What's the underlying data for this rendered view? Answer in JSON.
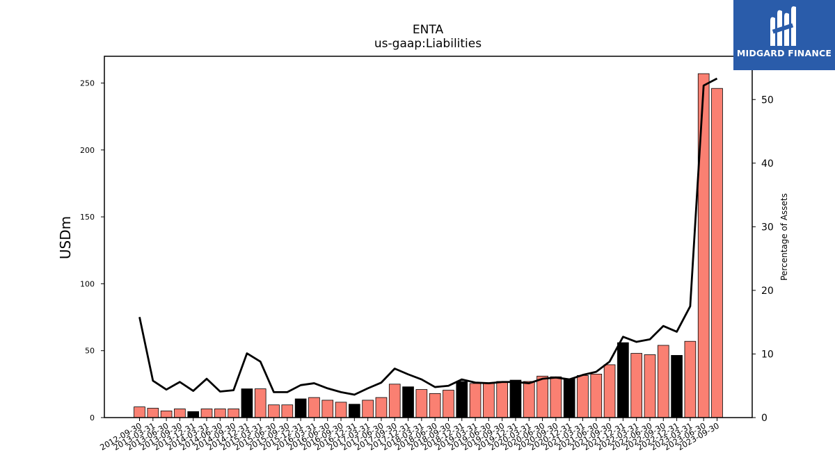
{
  "logo": {
    "text": "MIDGARD FINANCE"
  },
  "colors": {
    "bar_default": "#fa8072",
    "bar_highlight": "#000000",
    "line": "#000000",
    "logo_bg": "#2a5caa"
  },
  "chart_data": {
    "type": "bar",
    "title": "ENTA",
    "subtitle": "us-gaap:Liabilities",
    "ylabel": "USDm",
    "ylabel_right": "Percentage of Assets",
    "ylim": [
      0,
      270
    ],
    "ylim_right": [
      0,
      56.8
    ],
    "yticks": [
      0,
      50,
      100,
      150,
      200,
      250
    ],
    "yticks_right": [
      0,
      10,
      20,
      30,
      40,
      50
    ],
    "categories": [
      "2012-09-30",
      "2013-03-31",
      "2013-06-30",
      "2013-09-30",
      "2013-12-31",
      "2014-03-31",
      "2014-06-30",
      "2014-09-30",
      "2014-12-31",
      "2015-03-31",
      "2015-06-30",
      "2015-09-30",
      "2015-12-31",
      "2016-03-31",
      "2016-06-30",
      "2016-09-30",
      "2016-12-31",
      "2017-03-31",
      "2017-06-30",
      "2017-09-30",
      "2017-12-31",
      "2018-03-31",
      "2018-06-30",
      "2018-09-30",
      "2018-12-31",
      "2019-03-31",
      "2019-06-30",
      "2019-09-30",
      "2019-12-31",
      "2020-03-31",
      "2020-06-30",
      "2020-09-30",
      "2020-12-31",
      "2021-03-31",
      "2021-06-30",
      "2021-09-30",
      "2021-12-31",
      "2022-03-31",
      "2022-06-30",
      "2022-09-30",
      "2022-12-31",
      "2023-03-31",
      "2023-06-30",
      "2023-09-30"
    ],
    "series": [
      {
        "values": [
          8,
          7,
          5,
          6.5,
          4.5,
          6.5,
          6.5,
          6.5,
          21.5,
          21.5,
          9.5,
          9.5,
          14,
          15,
          13,
          11.5,
          10,
          13,
          15,
          25,
          23,
          21,
          18,
          20.5,
          27,
          25.5,
          25.5,
          27,
          28,
          27,
          31,
          30.5,
          29,
          31.5,
          32.5,
          39.5,
          56,
          48,
          47,
          54,
          46.5,
          57,
          257,
          246
        ],
        "highlight": [
          false,
          false,
          false,
          false,
          true,
          false,
          false,
          false,
          true,
          false,
          false,
          false,
          true,
          false,
          false,
          false,
          true,
          false,
          false,
          false,
          true,
          false,
          false,
          false,
          true,
          false,
          false,
          false,
          true,
          false,
          false,
          false,
          true,
          false,
          false,
          false,
          true,
          false,
          false,
          false,
          true,
          false,
          false,
          false
        ]
      },
      {
        "axis": "right",
        "type": "line",
        "values": [
          15.8,
          5.8,
          4.4,
          5.6,
          4.2,
          6.1,
          4.1,
          4.3,
          10.1,
          8.8,
          4.0,
          4.0,
          5.1,
          5.4,
          4.6,
          4.0,
          3.6,
          4.6,
          5.5,
          7.7,
          6.8,
          6.0,
          4.8,
          5.0,
          6.0,
          5.5,
          5.4,
          5.6,
          5.6,
          5.4,
          6.1,
          6.3,
          6.0,
          6.7,
          7.2,
          8.8,
          12.7,
          11.9,
          12.3,
          14.4,
          13.5,
          17.5,
          52.2,
          53.3
        ]
      }
    ]
  }
}
